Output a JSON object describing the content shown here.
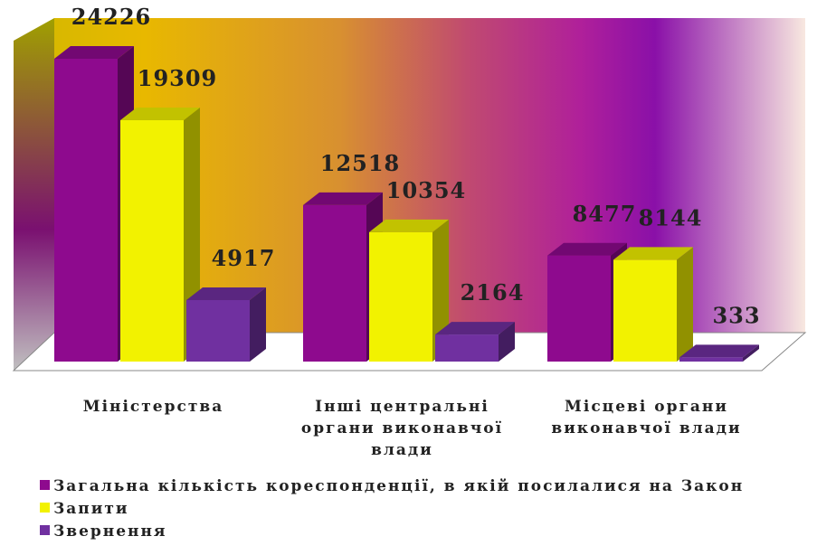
{
  "chart_data": {
    "type": "bar3d",
    "categories": [
      "Міністерства",
      "Інші центральні органи виконавчої влади",
      "Місцеві органи виконавчої влади"
    ],
    "series": [
      {
        "name": "Загальна кількість кореспонденції, в якій посилалися на Закон",
        "color": "#8e0a8e",
        "values": [
          24226,
          12518,
          8477
        ]
      },
      {
        "name": "Запити",
        "color": "#f2f200",
        "values": [
          19309,
          10354,
          8144
        ]
      },
      {
        "name": "Звернення",
        "color": "#7030a0",
        "values": [
          4917,
          2164,
          333
        ]
      }
    ]
  }
}
